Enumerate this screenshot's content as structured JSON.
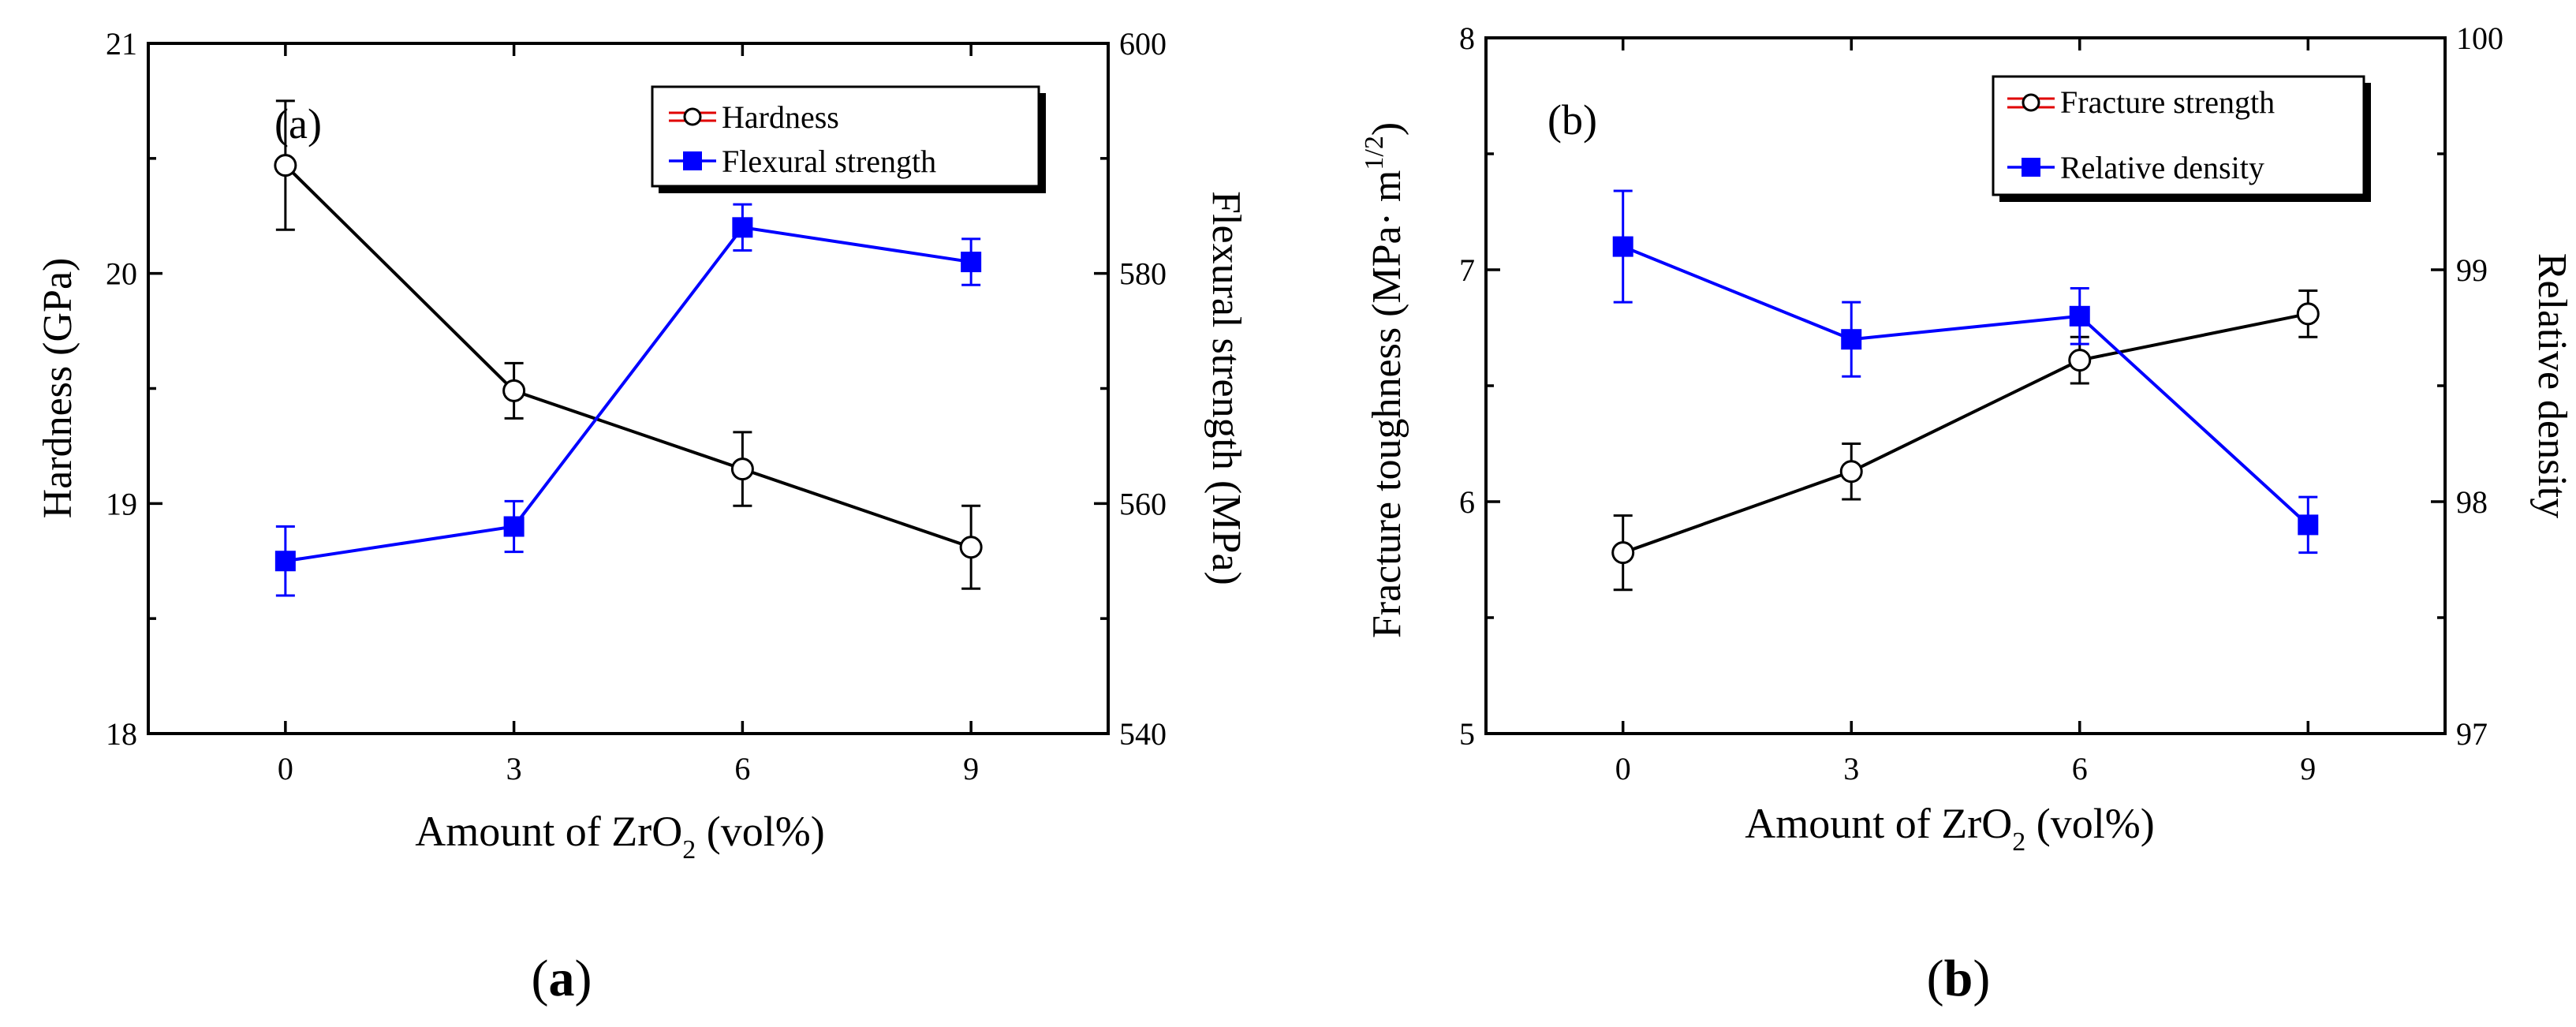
{
  "chart_data": [
    {
      "type": "line",
      "panel_label": "(a)",
      "caption_parts": [
        "(",
        "a",
        ")"
      ],
      "x": [
        0,
        3,
        6,
        9
      ],
      "xlim": [
        -1.8,
        10.8
      ],
      "xticks": [
        "0",
        "3",
        "6",
        "9"
      ],
      "xlabel": {
        "pre": "Amount of ZrO",
        "sub": "2",
        "post": " (vol%)"
      },
      "ylabel_left": "Hardness (GPa)",
      "ylabel_right": "Flexural strength (MPa)",
      "ylim_left": [
        18,
        21
      ],
      "ylim_right": [
        540,
        600
      ],
      "yticks_left": [
        "18",
        "19",
        "20",
        "21"
      ],
      "yticks_right": [
        "540",
        "560",
        "580",
        "600"
      ],
      "legend_position": "top-right",
      "series": [
        {
          "name": "Hardness",
          "axis": "left",
          "marker": "circle-open",
          "color": "#000000",
          "values": [
            20.47,
            19.49,
            19.15,
            18.81
          ],
          "errors": [
            0.28,
            0.12,
            0.16,
            0.18
          ]
        },
        {
          "name": "Flexural strength",
          "axis": "right",
          "marker": "square-filled",
          "color": "#0000ff",
          "values": [
            555,
            558,
            584,
            581
          ],
          "errors": [
            3,
            2.2,
            2,
            2
          ]
        }
      ]
    },
    {
      "type": "line",
      "panel_label": "(b)",
      "caption_parts": [
        "(",
        "b",
        ")"
      ],
      "x": [
        0,
        3,
        6,
        9
      ],
      "xlim": [
        -1.8,
        10.8
      ],
      "xticks": [
        "0",
        "3",
        "6",
        "9"
      ],
      "xlabel": {
        "pre": "Amount of ZrO",
        "sub": "2",
        "post": " (vol%)"
      },
      "ylabel_left": {
        "pre": "Fracture toughness (MPa· m",
        "sup": "1/2",
        "post": ")"
      },
      "ylabel_right": "Relative density",
      "ylim_left": [
        5,
        8
      ],
      "ylim_right": [
        97,
        100
      ],
      "yticks_left": [
        "5",
        "6",
        "7",
        "8"
      ],
      "yticks_right": [
        "97",
        "98",
        "99",
        "100"
      ],
      "legend_position": "top-right",
      "series": [
        {
          "name": "Fracture strength",
          "axis": "left",
          "marker": "circle-open",
          "color": "#000000",
          "values": [
            5.78,
            6.13,
            6.61,
            6.81
          ],
          "errors": [
            0.16,
            0.12,
            0.1,
            0.1
          ]
        },
        {
          "name": "Relative density",
          "axis": "right",
          "marker": "square-filled",
          "color": "#0000ff",
          "values": [
            99.1,
            98.7,
            98.8,
            97.9
          ],
          "errors": [
            0.24,
            0.16,
            0.12,
            0.12
          ]
        }
      ]
    }
  ]
}
